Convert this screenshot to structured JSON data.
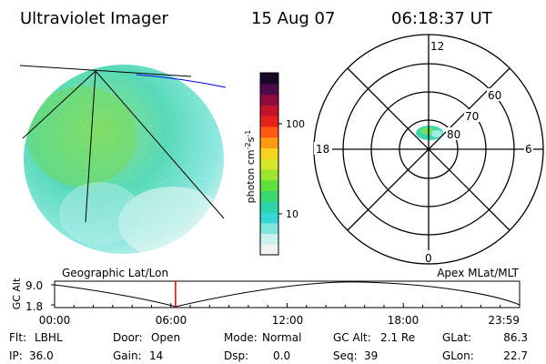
{
  "header": {
    "instrument": "Ultraviolet Imager",
    "date": "15 Aug 07",
    "time": "06:18:37 UT"
  },
  "colorbar": {
    "unit_label": "photon cm",
    "unit_sup1": "-2",
    "unit_mid": "s",
    "unit_sup2": "-1",
    "ticks": [
      {
        "label": "100",
        "frac": 0.72
      },
      {
        "label": "10",
        "frac": 0.225
      }
    ],
    "colors": [
      "#f2f2f2",
      "#c9f3ee",
      "#7fe6dc",
      "#33d7d7",
      "#2cd4a8",
      "#3cd76c",
      "#5fe03a",
      "#9ae630",
      "#d6e82a",
      "#f7d320",
      "#ff9a12",
      "#ff5a10",
      "#e82218",
      "#c4122a",
      "#8e0c3c",
      "#4e0a4a",
      "#160826"
    ]
  },
  "polar_plot": {
    "labels": {
      "top": "12",
      "bottom": "0",
      "left": "18",
      "right": "6",
      "r60": "60",
      "r70": "70",
      "r80": "80"
    }
  },
  "lower_labels": {
    "left": "Geographic Lat/Lon",
    "right": "Apex MLat/MLT"
  },
  "altitude_panel": {
    "axis_title": "GC Alt",
    "ymax": "9.0",
    "ymin": "1.8",
    "x_ticks": [
      "00:00",
      "06:00",
      "12:00",
      "18:00",
      "23:59"
    ],
    "current_time_frac": 0.26
  },
  "status": {
    "filter_label": "Flt:",
    "filter_value": "LBHL",
    "door_label": "Door:",
    "door_value": "Open",
    "mode_label": "Mode:",
    "mode_value": "Normal",
    "gcalt_label": "GC Alt:",
    "gcalt_value": "2.1 Re",
    "glat_label": "GLat:",
    "glat_value": "86.3",
    "ip_label": "IP:",
    "ip_value": "36.0",
    "gain_label": "Gain:",
    "gain_value": "14",
    "dsp_label": "Dsp:",
    "dsp_value": "0.0",
    "seq_label": "Seq:",
    "seq_value": "39",
    "glon_label": "GLon:",
    "glon_value": "22.7"
  }
}
